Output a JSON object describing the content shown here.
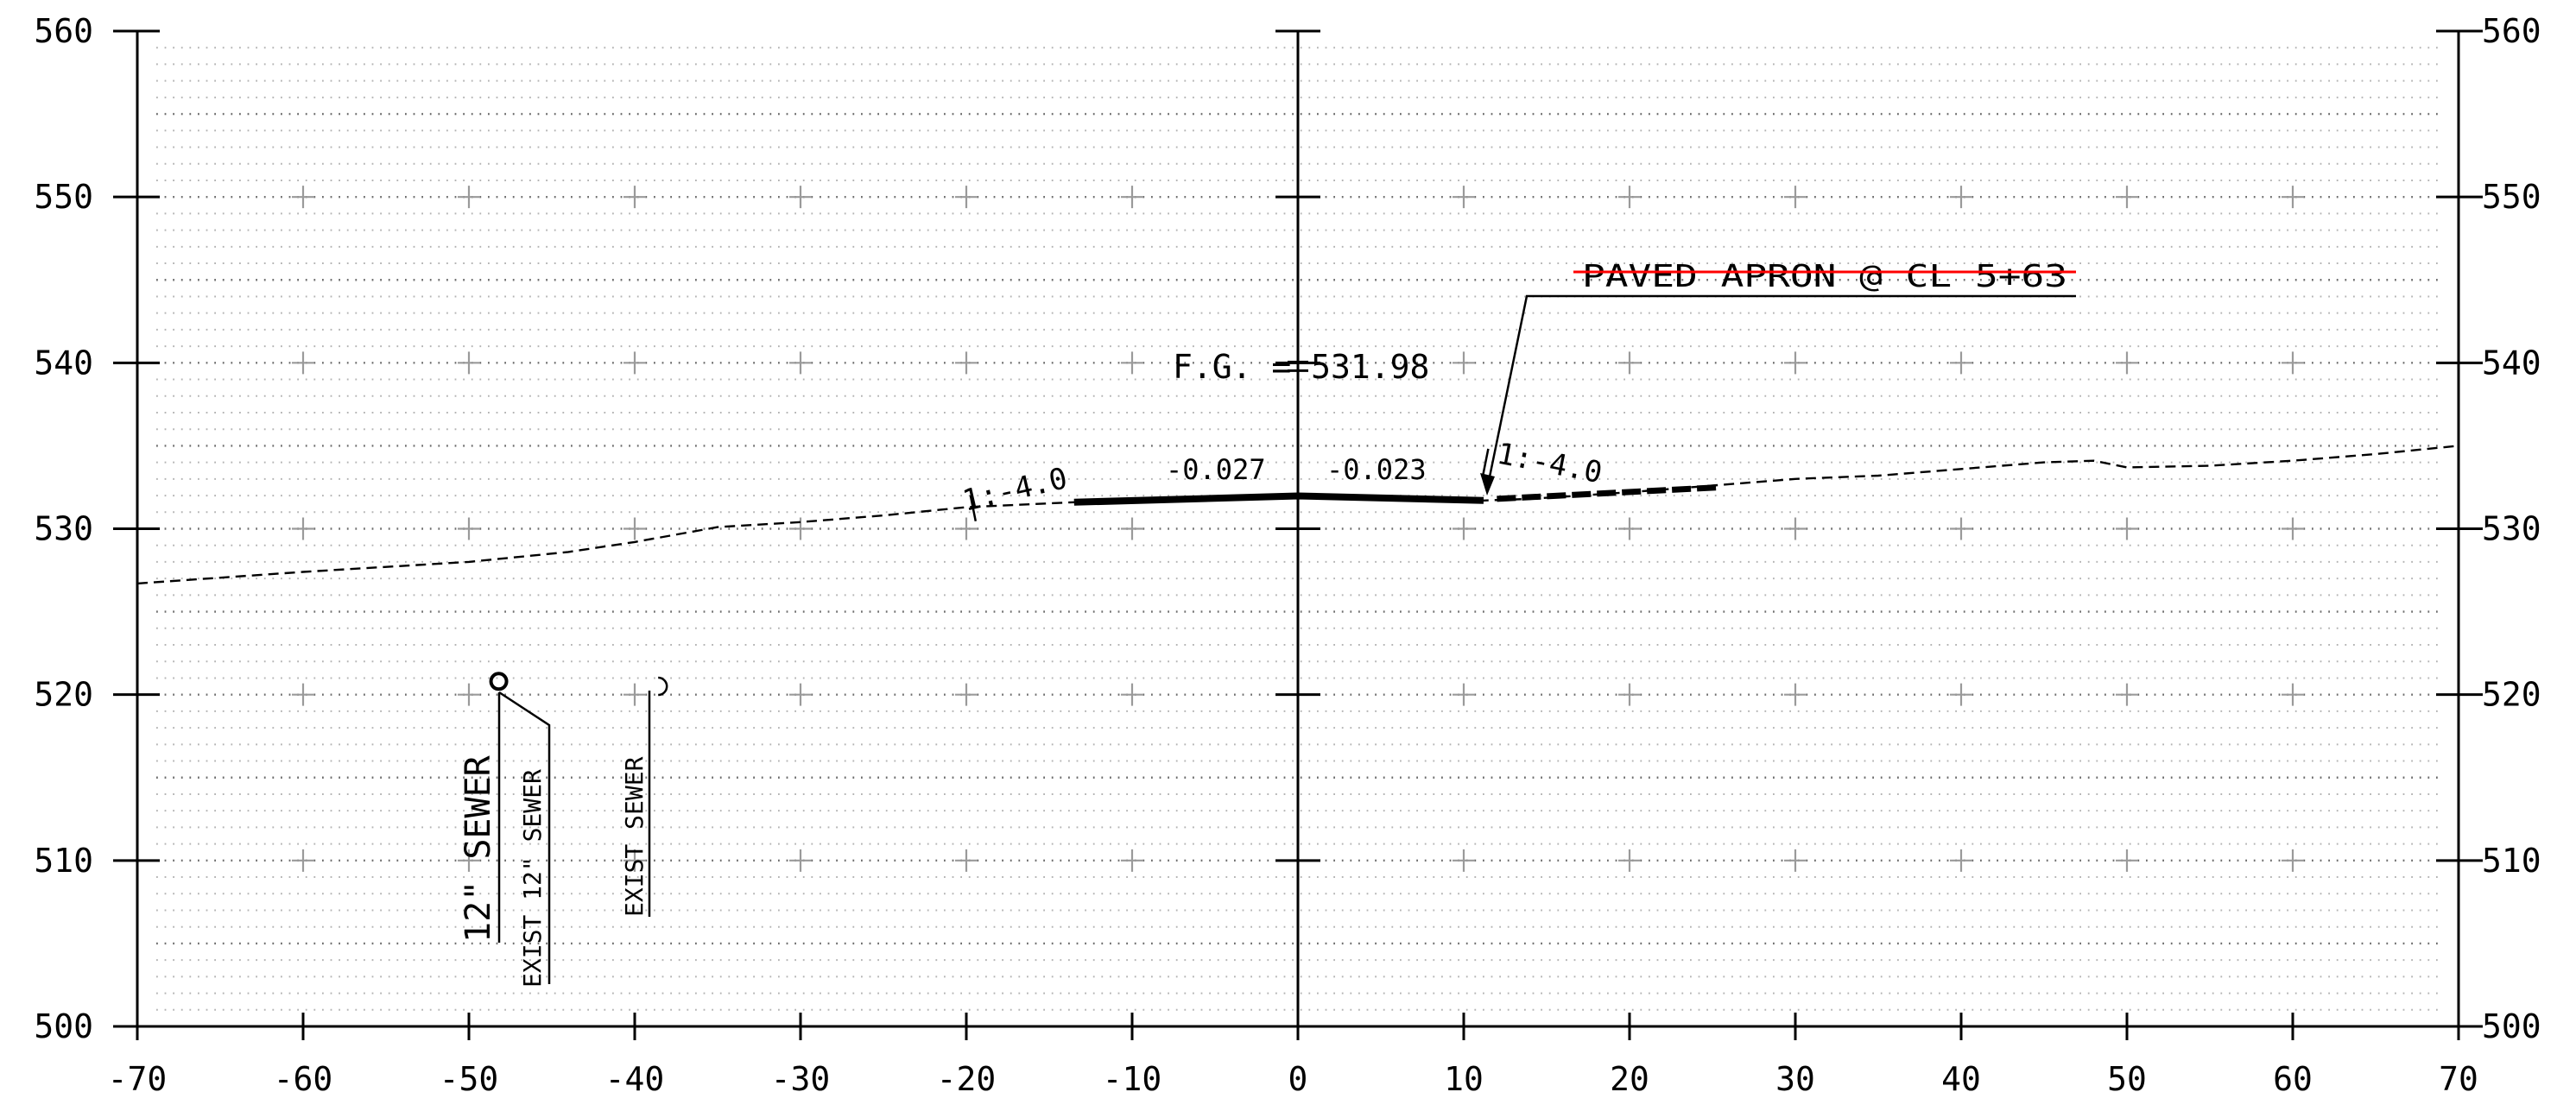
{
  "chart_data": {
    "type": "cross-section",
    "xlim": [
      -70,
      70
    ],
    "ylim": [
      500,
      560
    ],
    "x_ticks": [
      "-70",
      "-60",
      "-50",
      "-40",
      "-30",
      "-20",
      "-10",
      "0",
      "10",
      "20",
      "30",
      "40",
      "50",
      "60",
      "70"
    ],
    "y_ticks": [
      "500",
      "510",
      "520",
      "530",
      "540",
      "550",
      "560"
    ],
    "existing_ground": [
      [
        -70,
        526.7
      ],
      [
        -60,
        527.4
      ],
      [
        -50,
        528.0
      ],
      [
        -44,
        528.6
      ],
      [
        -40,
        529.2
      ],
      [
        -35,
        530.1
      ],
      [
        -30,
        530.4
      ],
      [
        -25,
        530.8
      ],
      [
        -20,
        531.3
      ],
      [
        -13.5,
        531.6
      ],
      [
        -10,
        531.7
      ],
      [
        0,
        532.1
      ],
      [
        10,
        531.7
      ],
      [
        11.2,
        531.7
      ],
      [
        14,
        531.8
      ],
      [
        20,
        532.2
      ],
      [
        25,
        532.6
      ],
      [
        30,
        533.0
      ],
      [
        35,
        533.2
      ],
      [
        40,
        533.6
      ],
      [
        45,
        534.0
      ],
      [
        48,
        534.1
      ],
      [
        50,
        533.7
      ],
      [
        55,
        533.8
      ],
      [
        60,
        534.1
      ],
      [
        65,
        534.5
      ],
      [
        70,
        535.0
      ]
    ],
    "proposed_section": [
      [
        -13.5,
        531.6
      ],
      [
        0,
        531.98
      ],
      [
        11.2,
        531.7
      ]
    ],
    "right_slope": [
      [
        12,
        531.8
      ],
      [
        25.5,
        532.5
      ]
    ],
    "sewer_markers": [
      {
        "x": -48.2,
        "y": 520.8,
        "style": "circle"
      },
      {
        "x": -39.0,
        "y": 520.5,
        "style": "arc"
      }
    ],
    "annotations": {
      "fg": "F.G. = 531.98",
      "left_slope": "1:-4.0",
      "right_slope": "1:-4.0",
      "grade_left": "-0.027",
      "grade_right": "-0.023",
      "apron": "PAVED APRON @ CL 5+63",
      "sewer_12": "12\" SEWER",
      "exist_12": "EXIST 12\" SEWER",
      "exist_sewer": "EXIST SEWER"
    },
    "colors": {
      "line": "#000000",
      "apron_strike": "#ff0000",
      "grid": "#9a9a9a"
    }
  }
}
